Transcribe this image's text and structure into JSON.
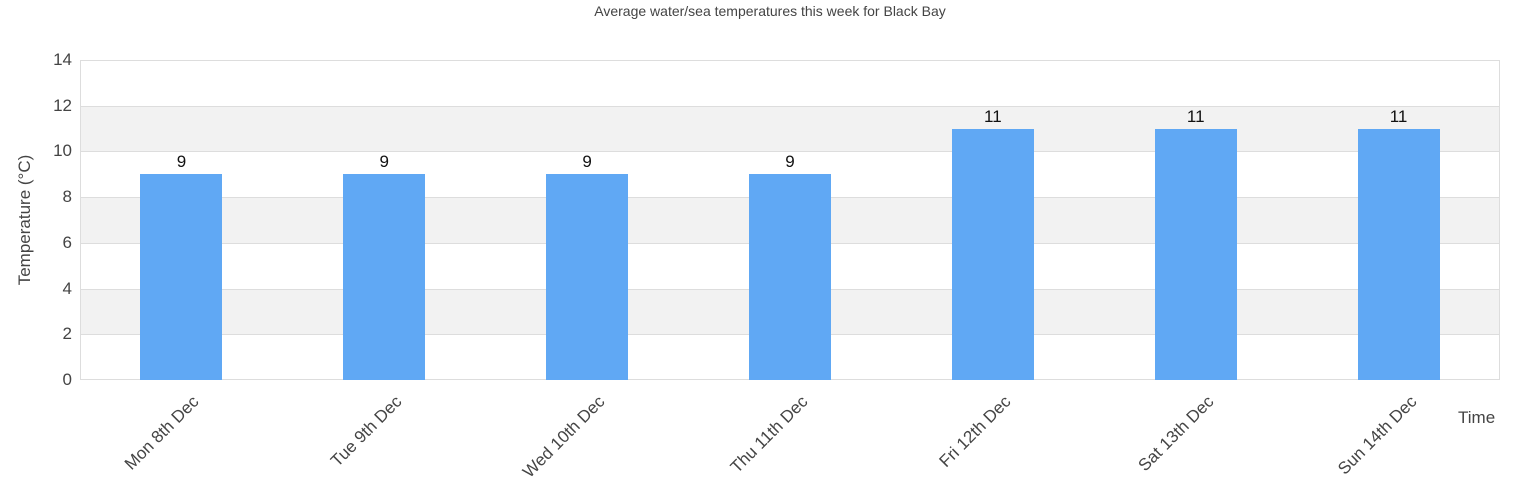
{
  "chart_data": {
    "type": "bar",
    "title": "Average water/sea temperatures this week for Black Bay",
    "xlabel": "Time",
    "ylabel": "Temperature (°C)",
    "ylim": [
      0,
      14
    ],
    "yticks": [
      0,
      2,
      4,
      6,
      8,
      10,
      12,
      14
    ],
    "grid": true,
    "legend": null,
    "categories": [
      "Mon 8th Dec",
      "Tue 9th Dec",
      "Wed 10th Dec",
      "Thu 11th Dec",
      "Fri 12th Dec",
      "Sat 13th Dec",
      "Sun 14th Dec"
    ],
    "values": [
      9,
      9,
      9,
      9,
      11,
      11,
      11
    ],
    "data_labels": [
      "9",
      "9",
      "9",
      "9",
      "11",
      "11",
      "11"
    ],
    "colors": {
      "bar": "#60a8f4",
      "band": "#f2f2f2",
      "grid": "#dddddd"
    }
  }
}
